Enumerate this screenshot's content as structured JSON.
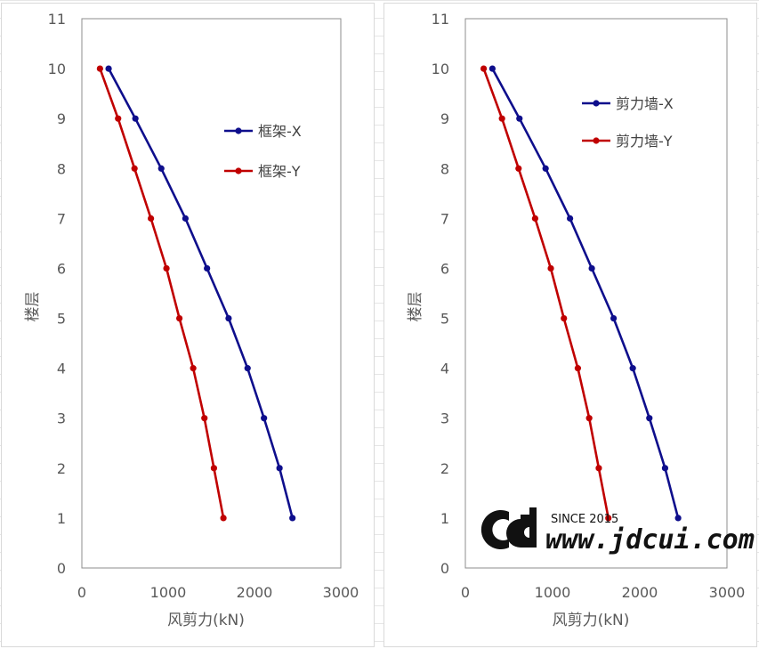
{
  "chart_data": [
    {
      "type": "line",
      "title": "",
      "xlabel": "风剪力(kN)",
      "ylabel": "楼层",
      "xlim": [
        0,
        3000
      ],
      "ylim": [
        0,
        11
      ],
      "xticks": [
        "0",
        "1000",
        "2000",
        "3000"
      ],
      "yticks": [
        "0",
        "1",
        "2",
        "3",
        "4",
        "5",
        "6",
        "7",
        "8",
        "9",
        "10",
        "11"
      ],
      "grid": false,
      "legend_position": "right",
      "series": [
        {
          "name": "框架-X",
          "color": "#0e0e8c",
          "points": [
            [
              2440,
              1
            ],
            [
              2290,
              2
            ],
            [
              2110,
              3
            ],
            [
              1920,
              4
            ],
            [
              1700,
              5
            ],
            [
              1450,
              6
            ],
            [
              1200,
              7
            ],
            [
              920,
              8
            ],
            [
              620,
              9
            ],
            [
              310,
              10
            ]
          ]
        },
        {
          "name": "框架-Y",
          "color": "#c00000",
          "points": [
            [
              1640,
              1
            ],
            [
              1530,
              2
            ],
            [
              1420,
              3
            ],
            [
              1290,
              4
            ],
            [
              1130,
              5
            ],
            [
              980,
              6
            ],
            [
              800,
              7
            ],
            [
              610,
              8
            ],
            [
              420,
              9
            ],
            [
              210,
              10
            ]
          ]
        }
      ]
    },
    {
      "type": "line",
      "title": "",
      "xlabel": "风剪力(kN)",
      "ylabel": "楼层",
      "xlim": [
        0,
        3000
      ],
      "ylim": [
        0,
        11
      ],
      "xticks": [
        "0",
        "1000",
        "2000",
        "3000"
      ],
      "yticks": [
        "0",
        "1",
        "2",
        "3",
        "4",
        "5",
        "6",
        "7",
        "8",
        "9",
        "10",
        "11"
      ],
      "grid": false,
      "legend_position": "top-right",
      "series": [
        {
          "name": "剪力墙-X",
          "color": "#0e0e8c",
          "points": [
            [
              2440,
              1
            ],
            [
              2290,
              2
            ],
            [
              2110,
              3
            ],
            [
              1920,
              4
            ],
            [
              1700,
              5
            ],
            [
              1450,
              6
            ],
            [
              1200,
              7
            ],
            [
              920,
              8
            ],
            [
              620,
              9
            ],
            [
              310,
              10
            ]
          ]
        },
        {
          "name": "剪力墙-Y",
          "color": "#c00000",
          "points": [
            [
              1640,
              1
            ],
            [
              1530,
              2
            ],
            [
              1420,
              3
            ],
            [
              1290,
              4
            ],
            [
              1130,
              5
            ],
            [
              980,
              6
            ],
            [
              800,
              7
            ],
            [
              610,
              8
            ],
            [
              420,
              9
            ],
            [
              210,
              10
            ]
          ]
        }
      ]
    }
  ],
  "watermark": {
    "logo": "CD",
    "since": "SINCE 2015",
    "url": "www.jdcui.com"
  }
}
